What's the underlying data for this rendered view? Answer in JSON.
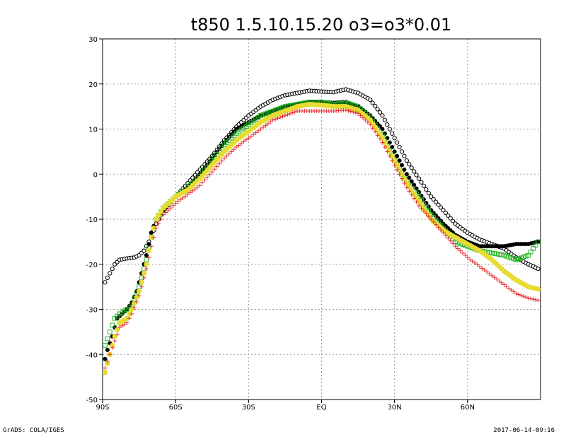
{
  "footer": {
    "left": "GrADS: COLA/IGES",
    "right": "2017-06-14-09:16"
  },
  "chart_data": {
    "type": "scatter",
    "title": "t850  1.5.10.15.20  o3=o3*0.01",
    "xlabel": "",
    "ylabel": "",
    "xlim": [
      -90,
      90
    ],
    "ylim": [
      -50,
      30
    ],
    "grid": true,
    "x_ticks": [
      -90,
      -60,
      -30,
      0,
      30,
      60
    ],
    "x_tick_labels": [
      "90S",
      "60S",
      "30S",
      "EQ",
      "30N",
      "60N"
    ],
    "y_ticks": [
      -50,
      -40,
      -30,
      -20,
      -10,
      0,
      10,
      20,
      30
    ],
    "y_tick_labels": [
      "-50",
      "-40",
      "-30",
      "-20",
      "-10",
      "0",
      "10",
      "20",
      "30"
    ],
    "series": [
      {
        "marker": "open-circle",
        "color": "#000000",
        "points": [
          [
            -89,
            -24
          ],
          [
            -87,
            -22
          ],
          [
            -85,
            -20
          ],
          [
            -83,
            -19
          ],
          [
            -80,
            -18.7
          ],
          [
            -77,
            -18.5
          ],
          [
            -75,
            -18
          ],
          [
            -73,
            -17
          ],
          [
            -70,
            -14
          ],
          [
            -68,
            -11
          ],
          [
            -65,
            -8
          ],
          [
            -60,
            -5
          ],
          [
            -55,
            -2
          ],
          [
            -50,
            1
          ],
          [
            -45,
            4
          ],
          [
            -40,
            7.5
          ],
          [
            -35,
            10.5
          ],
          [
            -30,
            13
          ],
          [
            -25,
            15
          ],
          [
            -20,
            16.5
          ],
          [
            -15,
            17.5
          ],
          [
            -10,
            18
          ],
          [
            -5,
            18.5
          ],
          [
            0,
            18.3
          ],
          [
            5,
            18.2
          ],
          [
            10,
            18.8
          ],
          [
            15,
            18
          ],
          [
            20,
            16.5
          ],
          [
            25,
            13
          ],
          [
            30,
            8
          ],
          [
            35,
            3
          ],
          [
            40,
            -1
          ],
          [
            45,
            -5
          ],
          [
            50,
            -8
          ],
          [
            55,
            -11
          ],
          [
            60,
            -13
          ],
          [
            65,
            -14.5
          ],
          [
            70,
            -15.5
          ],
          [
            75,
            -16.5
          ],
          [
            80,
            -18.5
          ],
          [
            85,
            -20
          ],
          [
            89,
            -21
          ]
        ]
      },
      {
        "marker": "filled-circle",
        "color": "#000000",
        "points": [
          [
            -89,
            -41
          ],
          [
            -88,
            -39
          ],
          [
            -86,
            -36
          ],
          [
            -84,
            -32
          ],
          [
            -82,
            -31
          ],
          [
            -80,
            -30
          ],
          [
            -78,
            -28.5
          ],
          [
            -76,
            -26
          ],
          [
            -74,
            -22
          ],
          [
            -72,
            -18
          ],
          [
            -70,
            -13
          ],
          [
            -68,
            -10
          ],
          [
            -65,
            -8
          ],
          [
            -60,
            -5
          ],
          [
            -55,
            -3
          ],
          [
            -50,
            0
          ],
          [
            -45,
            3.5
          ],
          [
            -40,
            7
          ],
          [
            -35,
            10
          ],
          [
            -30,
            11.5
          ],
          [
            -25,
            13
          ],
          [
            -20,
            14
          ],
          [
            -15,
            15
          ],
          [
            -10,
            15.5
          ],
          [
            -5,
            16
          ],
          [
            0,
            16
          ],
          [
            5,
            15.8
          ],
          [
            10,
            16
          ],
          [
            15,
            15
          ],
          [
            20,
            13
          ],
          [
            25,
            10
          ],
          [
            30,
            5
          ],
          [
            35,
            0
          ],
          [
            40,
            -4
          ],
          [
            45,
            -8
          ],
          [
            50,
            -11
          ],
          [
            55,
            -13.5
          ],
          [
            60,
            -15
          ],
          [
            65,
            -16
          ],
          [
            70,
            -16
          ],
          [
            75,
            -16
          ],
          [
            80,
            -15.5
          ],
          [
            85,
            -15.5
          ],
          [
            89,
            -15
          ]
        ]
      },
      {
        "marker": "open-square",
        "color": "#22b422",
        "points": [
          [
            -89,
            -38
          ],
          [
            -87,
            -35
          ],
          [
            -85,
            -32
          ],
          [
            -83,
            -31
          ],
          [
            -80,
            -30
          ],
          [
            -78,
            -29
          ],
          [
            -75,
            -25
          ],
          [
            -72,
            -19
          ],
          [
            -70,
            -14
          ],
          [
            -68,
            -10
          ],
          [
            -65,
            -7.5
          ],
          [
            -60,
            -5
          ],
          [
            -55,
            -3
          ],
          [
            -50,
            -0.5
          ],
          [
            -45,
            3
          ],
          [
            -40,
            6.5
          ],
          [
            -35,
            9
          ],
          [
            -30,
            11
          ],
          [
            -25,
            13
          ],
          [
            -20,
            14
          ],
          [
            -15,
            15
          ],
          [
            -10,
            15.5
          ],
          [
            -5,
            16
          ],
          [
            0,
            16
          ],
          [
            5,
            15.5
          ],
          [
            10,
            15.8
          ],
          [
            15,
            15
          ],
          [
            20,
            12.5
          ],
          [
            25,
            8.5
          ],
          [
            30,
            3
          ],
          [
            35,
            -2
          ],
          [
            40,
            -5
          ],
          [
            45,
            -9
          ],
          [
            50,
            -12
          ],
          [
            55,
            -15
          ],
          [
            60,
            -16
          ],
          [
            65,
            -17
          ],
          [
            70,
            -17.5
          ],
          [
            75,
            -18
          ],
          [
            80,
            -19
          ],
          [
            85,
            -18
          ],
          [
            89,
            -15
          ]
        ]
      },
      {
        "marker": "filled-circle-large",
        "color": "#e6dc32",
        "points": [
          [
            -89,
            -44
          ],
          [
            -87,
            -40
          ],
          [
            -85,
            -36
          ],
          [
            -83,
            -33
          ],
          [
            -80,
            -32
          ],
          [
            -78,
            -30
          ],
          [
            -75,
            -26
          ],
          [
            -72,
            -20
          ],
          [
            -70,
            -14
          ],
          [
            -68,
            -10
          ],
          [
            -65,
            -7.5
          ],
          [
            -60,
            -5
          ],
          [
            -55,
            -3.5
          ],
          [
            -50,
            -1
          ],
          [
            -45,
            2
          ],
          [
            -40,
            5
          ],
          [
            -35,
            7.5
          ],
          [
            -30,
            9.5
          ],
          [
            -25,
            11.5
          ],
          [
            -20,
            13
          ],
          [
            -15,
            14
          ],
          [
            -10,
            15
          ],
          [
            -5,
            15.5
          ],
          [
            0,
            15.3
          ],
          [
            5,
            15
          ],
          [
            10,
            15
          ],
          [
            15,
            14.2
          ],
          [
            20,
            12
          ],
          [
            25,
            8
          ],
          [
            30,
            3
          ],
          [
            35,
            -2
          ],
          [
            40,
            -6
          ],
          [
            45,
            -10
          ],
          [
            50,
            -12.5
          ],
          [
            55,
            -14
          ],
          [
            60,
            -15.5
          ],
          [
            65,
            -17
          ],
          [
            70,
            -19
          ],
          [
            75,
            -21.5
          ],
          [
            80,
            -23.5
          ],
          [
            85,
            -25
          ],
          [
            89,
            -25.5
          ]
        ]
      },
      {
        "marker": "plus",
        "color": "#e63232",
        "points": [
          [
            -89,
            -43
          ],
          [
            -87,
            -40
          ],
          [
            -85,
            -37
          ],
          [
            -83,
            -34
          ],
          [
            -80,
            -33
          ],
          [
            -78,
            -31
          ],
          [
            -75,
            -27
          ],
          [
            -72,
            -21
          ],
          [
            -70,
            -16
          ],
          [
            -68,
            -12
          ],
          [
            -65,
            -9
          ],
          [
            -60,
            -6.5
          ],
          [
            -55,
            -4.5
          ],
          [
            -50,
            -2.5
          ],
          [
            -45,
            0.5
          ],
          [
            -40,
            3.5
          ],
          [
            -35,
            6
          ],
          [
            -30,
            8
          ],
          [
            -25,
            10
          ],
          [
            -20,
            12
          ],
          [
            -15,
            13
          ],
          [
            -10,
            14
          ],
          [
            -5,
            14
          ],
          [
            0,
            14
          ],
          [
            5,
            14
          ],
          [
            10,
            14.2
          ],
          [
            15,
            13.5
          ],
          [
            20,
            11
          ],
          [
            25,
            7
          ],
          [
            30,
            2
          ],
          [
            35,
            -3
          ],
          [
            40,
            -7
          ],
          [
            45,
            -10
          ],
          [
            50,
            -13
          ],
          [
            55,
            -16
          ],
          [
            60,
            -18.5
          ],
          [
            65,
            -20.5
          ],
          [
            70,
            -22.5
          ],
          [
            75,
            -24.5
          ],
          [
            80,
            -26.5
          ],
          [
            85,
            -27.5
          ],
          [
            89,
            -28
          ]
        ]
      }
    ]
  }
}
